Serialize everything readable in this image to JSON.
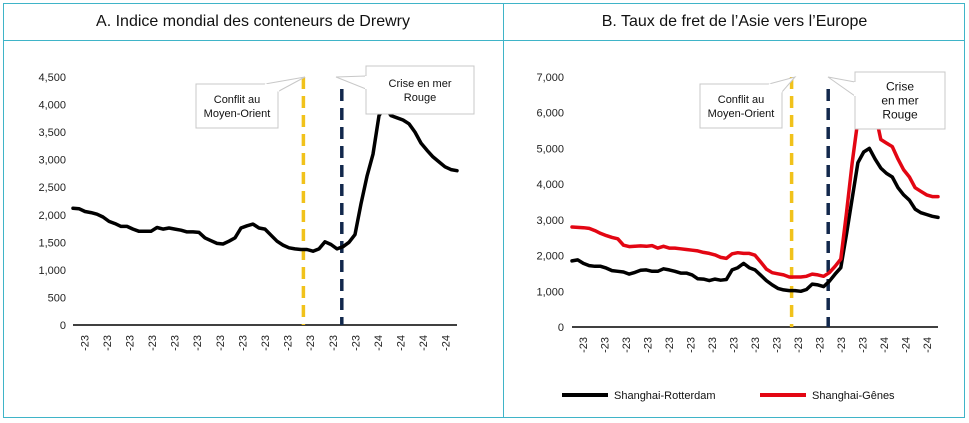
{
  "chart_data": [
    {
      "id": "A",
      "type": "line",
      "title": "A. Indice mondial des conteneurs de Drewry",
      "xlabel": "",
      "ylabel": "",
      "ylim": [
        0,
        4500
      ],
      "yticks": [
        0,
        500,
        1000,
        1500,
        2000,
        2500,
        3000,
        3500,
        4000,
        4500
      ],
      "ytick_labels": [
        "0",
        "500",
        "1,000",
        "1,500",
        "2,000",
        "2,500",
        "3,000",
        "3,500",
        "4,000",
        "4,500"
      ],
      "xtick_labels": [
        "-23",
        "-23",
        "-23",
        "-23",
        "-23",
        "-23",
        "-23",
        "-23",
        "-23",
        "-23",
        "-23",
        "-23",
        "-23",
        "-24",
        "-24",
        "-24",
        "-24"
      ],
      "grid": false,
      "series": [
        {
          "color": "#000000",
          "values": [
            2120,
            2110,
            2060,
            2040,
            2010,
            1960,
            1880,
            1840,
            1790,
            1790,
            1740,
            1700,
            1700,
            1700,
            1770,
            1740,
            1760,
            1740,
            1720,
            1690,
            1690,
            1680,
            1580,
            1530,
            1480,
            1470,
            1520,
            1580,
            1760,
            1800,
            1830,
            1760,
            1740,
            1630,
            1520,
            1450,
            1400,
            1380,
            1370,
            1370,
            1340,
            1380,
            1510,
            1460,
            1380,
            1420,
            1500,
            1640,
            2200,
            2700,
            3100,
            3800,
            3960,
            3800,
            3760,
            3720,
            3650,
            3500,
            3300,
            3170,
            3050,
            2960,
            2870,
            2820,
            2800
          ]
        }
      ],
      "events": [
        {
          "label_lines": [
            "Conflit au",
            "Moyen-Orient"
          ],
          "x_fraction": 0.6,
          "color": "#f1c21b"
        },
        {
          "label_lines": [
            "Crise en mer",
            "Rouge"
          ],
          "x_fraction": 0.7,
          "color": "#12284c"
        }
      ]
    },
    {
      "id": "B",
      "type": "line",
      "title": "B. Taux de fret de l’Asie vers l’Europe",
      "xlabel": "",
      "ylabel": "",
      "ylim": [
        0,
        7000
      ],
      "yticks": [
        0,
        1000,
        2000,
        3000,
        4000,
        5000,
        6000,
        7000
      ],
      "ytick_labels": [
        "0",
        "1,000",
        "2,000",
        "3,000",
        "4,000",
        "5,000",
        "6,000",
        "7,000"
      ],
      "xtick_labels": [
        "-23",
        "-23",
        "-23",
        "-23",
        "-23",
        "-23",
        "-23",
        "-23",
        "-23",
        "-23",
        "-23",
        "-23",
        "-23",
        "-23",
        "-24",
        "-24",
        "-24"
      ],
      "grid": false,
      "legend_position": "bottom",
      "series": [
        {
          "name": "Shanghai-Rotterdam",
          "color": "#000000",
          "values": [
            1850,
            1880,
            1780,
            1720,
            1700,
            1700,
            1650,
            1580,
            1560,
            1540,
            1480,
            1530,
            1590,
            1600,
            1560,
            1560,
            1630,
            1600,
            1560,
            1510,
            1510,
            1460,
            1350,
            1340,
            1300,
            1340,
            1310,
            1330,
            1600,
            1660,
            1780,
            1660,
            1600,
            1450,
            1300,
            1180,
            1080,
            1040,
            1020,
            1020,
            1000,
            1050,
            1200,
            1180,
            1130,
            1280,
            1480,
            1660,
            2600,
            3600,
            4600,
            4900,
            5000,
            4700,
            4450,
            4300,
            4200,
            3900,
            3700,
            3550,
            3300,
            3200,
            3150,
            3100,
            3070
          ]
        },
        {
          "name": "Shanghai-Gênes",
          "color": "#e30613",
          "values": [
            2800,
            2790,
            2780,
            2760,
            2700,
            2620,
            2560,
            2510,
            2470,
            2290,
            2250,
            2260,
            2270,
            2260,
            2280,
            2210,
            2260,
            2210,
            2210,
            2190,
            2170,
            2150,
            2130,
            2090,
            2060,
            2020,
            1950,
            1920,
            2050,
            2080,
            2060,
            2060,
            2010,
            1820,
            1620,
            1520,
            1490,
            1460,
            1400,
            1400,
            1400,
            1420,
            1480,
            1460,
            1420,
            1520,
            1700,
            1900,
            3200,
            4600,
            5800,
            6300,
            6400,
            6000,
            5250,
            5150,
            5050,
            4700,
            4400,
            4200,
            3900,
            3800,
            3700,
            3650,
            3650
          ]
        }
      ],
      "events": [
        {
          "label_lines": [
            "Conflit au",
            "Moyen-Orient"
          ],
          "x_fraction": 0.6,
          "color": "#f1c21b"
        },
        {
          "label_lines": [
            "Crise",
            "en mer",
            "Rouge"
          ],
          "x_fraction": 0.7,
          "color": "#12284c"
        }
      ]
    }
  ]
}
